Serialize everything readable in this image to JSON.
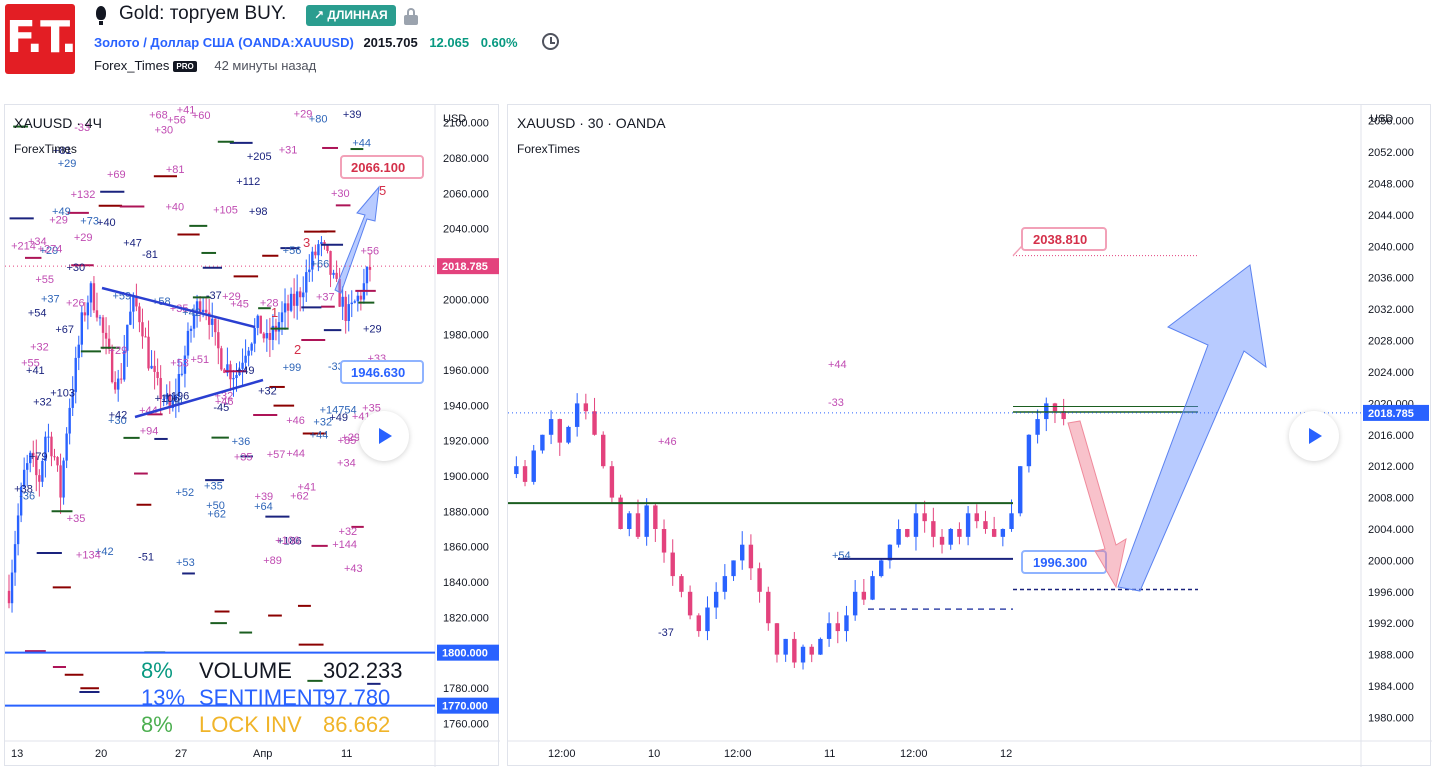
{
  "header": {
    "logo_text": "F.T.",
    "title": "Gold: торгуем BUY.",
    "direction_badge": "↗ ДЛИННАЯ",
    "symbol_name": "Золото / Доллар США",
    "symbol_exchange": "OANDA:XAUUSD",
    "price": "2015.705",
    "change": "12.065",
    "change_pct": "0.60%",
    "author": "Forex_Times",
    "author_badge": "PRO",
    "time_ago": "42 минуты назад"
  },
  "colors": {
    "brand_red": "#e31e24",
    "long_badge": "#2a9d8f",
    "positive": "#089981",
    "candle_up": "#2962ff",
    "candle_down": "#e3427d",
    "last_price_tag": "#e3427d",
    "level_tag": "#2962ff"
  },
  "icons": [
    "lightbulb-icon",
    "lock-icon",
    "clock-icon",
    "play-icon"
  ],
  "left_chart": {
    "title": "XAUUSD · 4Ч",
    "subtitle": "ForexTimes",
    "currency": "USD",
    "last_price": "2018.785",
    "level_high": "1800.000",
    "level_low": "1770.000",
    "target_up": "2066.100",
    "target_down": "1946.630",
    "stats": [
      {
        "pct": "8%",
        "name": "VOLUME",
        "value": "302.233",
        "color": "#089981",
        "name_color": "#131722"
      },
      {
        "pct": "13%",
        "name": "SENTIMENT",
        "value": "97.780",
        "color": "#2962ff",
        "name_color": "#2962ff"
      },
      {
        "pct": "8%",
        "name": "LOCK INV",
        "value": "86.662",
        "color": "#4caf50",
        "name_color": "#f0b429"
      }
    ]
  },
  "right_chart": {
    "title": "XAUUSD · 30 · OANDA",
    "subtitle": "ForexTimes",
    "currency": "USD",
    "last_price": "2018.785",
    "target_up": "2038.810",
    "target_down": "1996.300"
  },
  "chart_data": [
    {
      "type": "candlestick",
      "title": "XAUUSD · 4Ч",
      "ylabel": "USD",
      "ylim": [
        1750,
        2110
      ],
      "y_ticks": [
        "2100.000",
        "2080.000",
        "2060.000",
        "2040.000",
        "2020.000",
        "2000.000",
        "1980.000",
        "1960.000",
        "1940.000",
        "1920.000",
        "1900.000",
        "1880.000",
        "1860.000",
        "1840.000",
        "1820.000",
        "1780.000",
        "1760.000"
      ],
      "x_ticks": [
        "13",
        "20",
        "27",
        "Апр",
        "11"
      ],
      "trend_close": [
        1835,
        1870,
        1900,
        1910,
        1895,
        1925,
        1915,
        1890,
        1935,
        1960,
        1990,
        2005,
        1995,
        1975,
        1960,
        1950,
        1985,
        1998,
        1988,
        1965,
        1950,
        1945,
        1935,
        1955,
        1970,
        1990,
        2000,
        1995,
        1975,
        1965,
        1960,
        1958,
        1972,
        1980,
        1985,
        1975,
        1982,
        1990,
        1995,
        2000,
        2010,
        2020,
        2030,
        2025,
        2010,
        2000,
        1990,
        1998,
        2005,
        2018
      ],
      "annotations": [
        "2066.100",
        "1946.630"
      ],
      "wave_labels": [
        "1",
        "2",
        "3",
        "5"
      ],
      "markers": [
        "+89",
        "+32",
        "+105",
        "+49",
        "+56",
        "+14754",
        "+56",
        "+186",
        "+32",
        "+73",
        "+35",
        "+41",
        "+62",
        "+29",
        "+45",
        "+47",
        "+55",
        "+34",
        "+51",
        "+196",
        "+144",
        "+52",
        "+35",
        "+106",
        "+34",
        "-36",
        "+29",
        "+98",
        "+69",
        "+56",
        "+35",
        "+38",
        "+34",
        "+44",
        "-33",
        "+29",
        "+29",
        "+44",
        "+29",
        "+103",
        "+31",
        "+59",
        "+46",
        "+112",
        "+43",
        "+36",
        "+35",
        "+30",
        "+28",
        "+53",
        "+53",
        "+205",
        "+132",
        "+66",
        "+33",
        "+67",
        "+60",
        "+35",
        "+40",
        "+32",
        "+81",
        "+80",
        "+85",
        "+49",
        "+39",
        "+30",
        "+41",
        "+81",
        "+32",
        "+49",
        "+44",
        "+40",
        "+57",
        "+64",
        "+29",
        "-37",
        "+29",
        "+62",
        "+37",
        "-51",
        "+100",
        "+42",
        "+29",
        "-45",
        "+30",
        "+42",
        "+44",
        "+32",
        "+214",
        "+99",
        "+55",
        "+39",
        "+41",
        "+50",
        "+32",
        "+79",
        "+94",
        "+37",
        "+274",
        "-81",
        "+68",
        "+58",
        "+41",
        "+54",
        "+46",
        "+29",
        "+30",
        "+42",
        "+134",
        "-33",
        "+26"
      ]
    },
    {
      "type": "candlestick",
      "title": "XAUUSD · 30 · OANDA",
      "ylabel": "USD",
      "ylim": [
        1977,
        2058
      ],
      "y_ticks": [
        "2056.000",
        "2052.000",
        "2048.000",
        "2044.000",
        "2040.000",
        "2036.000",
        "2032.000",
        "2028.000",
        "2024.000",
        "2020.000",
        "2016.000",
        "2012.000",
        "2008.000",
        "2004.000",
        "2000.000",
        "1996.000",
        "1992.000",
        "1988.000",
        "1984.000",
        "1980.000"
      ],
      "x_ticks": [
        "12:00",
        "10",
        "12:00",
        "11",
        "12:00",
        "12"
      ],
      "close": [
        2012,
        2010,
        2014,
        2016,
        2018,
        2015,
        2017,
        2020,
        2019,
        2016,
        2012,
        2008,
        2004,
        2006,
        2003,
        2007,
        2004,
        2001,
        1998,
        1996,
        1993,
        1991,
        1994,
        1996,
        1998,
        2000,
        2002,
        1999,
        1996,
        1992,
        1988,
        1990,
        1987,
        1989,
        1988,
        1990,
        1992,
        1991,
        1993,
        1996,
        1995,
        1998,
        2000,
        2002,
        2004,
        2003,
        2006,
        2005,
        2003,
        2002,
        2004,
        2003,
        2006,
        2005,
        2004,
        2003,
        2004,
        2006,
        2012,
        2016,
        2018,
        2020,
        2019,
        2018
      ],
      "annotations": [
        "2038.810",
        "1996.300"
      ],
      "markers": [
        "+46",
        "+44",
        "-33",
        "+54",
        "-37"
      ]
    }
  ]
}
